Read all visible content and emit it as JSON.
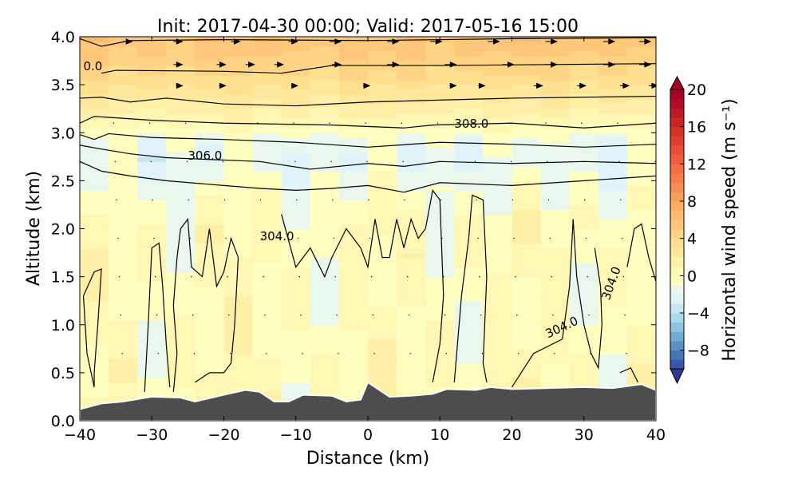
{
  "chart_data": {
    "type": "heatmap",
    "title": "Init: 2017-04-30 00:00; Valid: 2017-05-16 15:00",
    "xlabel": "Distance (km)",
    "ylabel": "Altitude (km)",
    "xlim": [
      -40,
      40
    ],
    "ylim": [
      0,
      4
    ],
    "xticks": [
      -40,
      -30,
      -20,
      -10,
      0,
      10,
      20,
      30,
      40
    ],
    "xtick_labels": [
      "−40",
      "−30",
      "−20",
      "−10",
      "0",
      "10",
      "20",
      "30",
      "40"
    ],
    "yticks": [
      0,
      0.5,
      1,
      1.5,
      2,
      2.5,
      3,
      3.5,
      4
    ],
    "ytick_labels": [
      "0.0",
      "0.5",
      "1.0",
      "1.5",
      "2.0",
      "2.5",
      "3.0",
      "3.5",
      "4.0"
    ],
    "colorbar": {
      "label": "Horizontal wind speed (m s⁻¹)",
      "range": [
        -10,
        20
      ],
      "ticks": [
        -8,
        -4,
        0,
        4,
        8,
        12,
        16,
        20
      ],
      "tick_labels": [
        "−8",
        "−4",
        "0",
        "4",
        "8",
        "12",
        "16",
        "20"
      ],
      "extend": "both",
      "neg_colors": [
        "#313695",
        "#4575b4",
        "#74add1",
        "#abd9e9",
        "#e0f3f8",
        "#f4fbe0"
      ],
      "pos_colors": [
        "#ffffbf",
        "#fee090",
        "#fdae61",
        "#f46d43",
        "#d73027",
        "#a50026"
      ]
    },
    "wind_profile": [
      [
        0,
        0.8
      ],
      [
        0.5,
        0.6
      ],
      [
        1.0,
        0.3
      ],
      [
        1.5,
        0.4
      ],
      [
        2.0,
        0.5
      ],
      [
        2.4,
        -0.3
      ],
      [
        2.7,
        -1.2
      ],
      [
        2.9,
        -0.8
      ],
      [
        3.05,
        0.6
      ],
      [
        3.3,
        2.5
      ],
      [
        3.6,
        4.5
      ],
      [
        4.0,
        6.5
      ]
    ],
    "terrain": [
      [
        -40,
        0.12
      ],
      [
        -37,
        0.18
      ],
      [
        -34,
        0.2
      ],
      [
        -30,
        0.25
      ],
      [
        -26,
        0.24
      ],
      [
        -24,
        0.2
      ],
      [
        -20,
        0.27
      ],
      [
        -17,
        0.32
      ],
      [
        -15,
        0.3
      ],
      [
        -13,
        0.2
      ],
      [
        -11,
        0.2
      ],
      [
        -9,
        0.27
      ],
      [
        -5,
        0.26
      ],
      [
        -3,
        0.2
      ],
      [
        -1,
        0.22
      ],
      [
        0,
        0.4
      ],
      [
        2,
        0.3
      ],
      [
        3,
        0.25
      ],
      [
        6,
        0.26
      ],
      [
        9,
        0.28
      ],
      [
        11,
        0.33
      ],
      [
        15,
        0.32
      ],
      [
        17,
        0.35
      ],
      [
        20,
        0.33
      ],
      [
        25,
        0.34
      ],
      [
        30,
        0.35
      ],
      [
        34,
        0.34
      ],
      [
        38,
        0.38
      ],
      [
        40,
        0.32
      ]
    ],
    "contours": [
      [
        [
          -40,
          3.98
        ],
        [
          -37,
          3.9
        ],
        [
          -33,
          3.96
        ],
        [
          -20,
          3.97
        ],
        [
          0,
          3.96
        ],
        [
          20,
          3.98
        ],
        [
          40,
          3.99
        ]
      ],
      [
        [
          -37,
          3.62
        ],
        [
          -35,
          3.65
        ],
        [
          -20,
          3.64
        ],
        [
          -12,
          3.62
        ],
        [
          -5,
          3.7
        ],
        [
          10,
          3.7
        ],
        [
          40,
          3.72
        ]
      ],
      [
        [
          -40,
          3.36
        ],
        [
          -37,
          3.37
        ],
        [
          -33,
          3.32
        ],
        [
          -28,
          3.36
        ],
        [
          -20,
          3.3
        ],
        [
          -10,
          3.28
        ],
        [
          0,
          3.32
        ],
        [
          20,
          3.36
        ],
        [
          40,
          3.38
        ]
      ],
      [
        [
          -40,
          3.1
        ],
        [
          -38,
          3.17
        ],
        [
          -30,
          3.13
        ],
        [
          -20,
          3.1
        ],
        [
          -5,
          3.08
        ],
        [
          5,
          3.05
        ],
        [
          9,
          3.08
        ],
        [
          20,
          3.1
        ],
        [
          30,
          3.05
        ],
        [
          40,
          3.1
        ]
      ],
      [
        [
          -40,
          2.98
        ],
        [
          -38,
          2.93
        ],
        [
          -36,
          2.99
        ],
        [
          -30,
          2.95
        ],
        [
          -20,
          2.93
        ],
        [
          -10,
          2.9
        ],
        [
          0,
          2.85
        ],
        [
          10,
          2.9
        ],
        [
          20,
          2.88
        ],
        [
          30,
          2.85
        ],
        [
          40,
          2.88
        ]
      ],
      [
        [
          -40,
          2.87
        ],
        [
          -37,
          2.83
        ],
        [
          -33,
          2.78
        ],
        [
          -28,
          2.74
        ],
        [
          -15,
          2.7
        ],
        [
          -8,
          2.62
        ],
        [
          0,
          2.68
        ],
        [
          5,
          2.65
        ],
        [
          10,
          2.7
        ],
        [
          20,
          2.68
        ],
        [
          30,
          2.7
        ],
        [
          40,
          2.68
        ]
      ],
      [
        [
          -40,
          2.7
        ],
        [
          -37,
          2.6
        ],
        [
          -33,
          2.55
        ],
        [
          -28,
          2.5
        ],
        [
          -20,
          2.45
        ],
        [
          -15,
          2.42
        ],
        [
          -10,
          2.4
        ],
        [
          -5,
          2.42
        ],
        [
          0,
          2.45
        ],
        [
          5,
          2.38
        ],
        [
          10,
          2.48
        ],
        [
          20,
          2.45
        ],
        [
          30,
          2.5
        ],
        [
          40,
          2.55
        ]
      ],
      [
        [
          -38,
          0.35
        ],
        [
          -39,
          0.7
        ],
        [
          -39.5,
          1.3
        ],
        [
          -38,
          1.55
        ],
        [
          -37,
          1.58
        ],
        [
          -37.5,
          1.0
        ],
        [
          -38,
          0.5
        ],
        [
          -38,
          0.35
        ]
      ],
      [
        [
          -31,
          0.3
        ],
        [
          -30.5,
          1.0
        ],
        [
          -30,
          1.8
        ],
        [
          -29,
          1.85
        ],
        [
          -28.5,
          1.4
        ],
        [
          -28,
          0.8
        ],
        [
          -27.5,
          0.35
        ]
      ],
      [
        [
          -27,
          0.3
        ],
        [
          -26.5,
          0.7
        ],
        [
          -27,
          1.2
        ],
        [
          -26.5,
          1.7
        ],
        [
          -26,
          2.0
        ],
        [
          -25,
          2.1
        ],
        [
          -24.5,
          1.6
        ],
        [
          -23,
          1.5
        ],
        [
          -22,
          2.0
        ],
        [
          -21,
          1.4
        ],
        [
          -20,
          1.55
        ],
        [
          -19,
          1.9
        ],
        [
          -18,
          1.7
        ],
        [
          -18.5,
          1.0
        ],
        [
          -19,
          0.6
        ],
        [
          -20,
          0.5
        ],
        [
          -22,
          0.5
        ],
        [
          -24,
          0.4
        ]
      ],
      [
        [
          -12,
          2.15
        ],
        [
          -10,
          1.6
        ],
        [
          -8,
          1.8
        ],
        [
          -6,
          1.5
        ],
        [
          -5,
          1.7
        ],
        [
          -3,
          2.0
        ],
        [
          -1,
          1.8
        ],
        [
          0,
          1.6
        ],
        [
          1,
          2.1
        ],
        [
          2,
          1.7
        ],
        [
          3,
          1.7
        ],
        [
          4,
          2.1
        ],
        [
          5,
          1.8
        ],
        [
          6,
          2.1
        ],
        [
          7,
          1.9
        ],
        [
          8,
          2.0
        ],
        [
          9,
          2.4
        ],
        [
          10,
          2.3
        ],
        [
          10.5,
          1.3
        ],
        [
          10,
          0.8
        ],
        [
          9,
          0.4
        ]
      ],
      [
        [
          12,
          0.4
        ],
        [
          13,
          1.3
        ],
        [
          14,
          1.9
        ],
        [
          14.5,
          2.35
        ],
        [
          16,
          2.3
        ],
        [
          16.5,
          1.5
        ],
        [
          16,
          0.6
        ],
        [
          16.5,
          0.4
        ]
      ],
      [
        [
          20,
          0.35
        ],
        [
          23,
          0.7
        ],
        [
          27,
          0.85
        ],
        [
          28,
          1.4
        ],
        [
          28.5,
          2.1
        ],
        [
          29,
          1.5
        ],
        [
          30,
          1.0
        ],
        [
          31,
          0.7
        ],
        [
          32,
          0.55
        ],
        [
          32.5,
          1.0
        ],
        [
          32.3,
          1.4
        ],
        [
          31.5,
          1.8
        ]
      ],
      [
        [
          36,
          1.6
        ],
        [
          37,
          2.0
        ],
        [
          38,
          2.05
        ],
        [
          39,
          1.7
        ],
        [
          40,
          1.45
        ]
      ],
      [
        [
          35,
          0.5
        ],
        [
          36.5,
          0.55
        ],
        [
          37.5,
          0.4
        ]
      ]
    ],
    "contour_labels": [
      {
        "text": "0.0",
        "x": -39.5,
        "y": 3.65,
        "angle": 0
      },
      {
        "text": "308.0",
        "x": 12,
        "y": 3.05,
        "angle": 0
      },
      {
        "text": "306.0",
        "x": -25,
        "y": 2.72,
        "angle": 0
      },
      {
        "text": "304.0",
        "x": -15,
        "y": 1.88,
        "angle": 0
      },
      {
        "text": "304.0",
        "x": 25,
        "y": 0.86,
        "angle": -25
      },
      {
        "text": "304.0",
        "x": 33.5,
        "y": 1.25,
        "angle": -70
      }
    ],
    "quiver_rows": [
      {
        "y": 3.95,
        "x": [
          -33,
          -26,
          -18,
          -10,
          -4,
          4,
          10,
          18,
          26,
          34,
          39
        ],
        "u": [
          3,
          3,
          3,
          3,
          4,
          4,
          4,
          4,
          4,
          4,
          4
        ]
      },
      {
        "y": 3.71,
        "x": [
          -26,
          -20,
          -16,
          -12,
          -4,
          4,
          12,
          20,
          26,
          34,
          39
        ],
        "u": [
          3,
          3,
          3,
          3,
          3,
          4,
          4,
          4,
          4,
          4,
          4
        ]
      },
      {
        "y": 3.49,
        "x": [
          -26,
          -20,
          -10,
          0,
          12,
          16,
          24,
          30,
          36,
          40
        ],
        "u": [
          2,
          2,
          2,
          2,
          2,
          2,
          3,
          3,
          3,
          3
        ]
      }
    ]
  }
}
